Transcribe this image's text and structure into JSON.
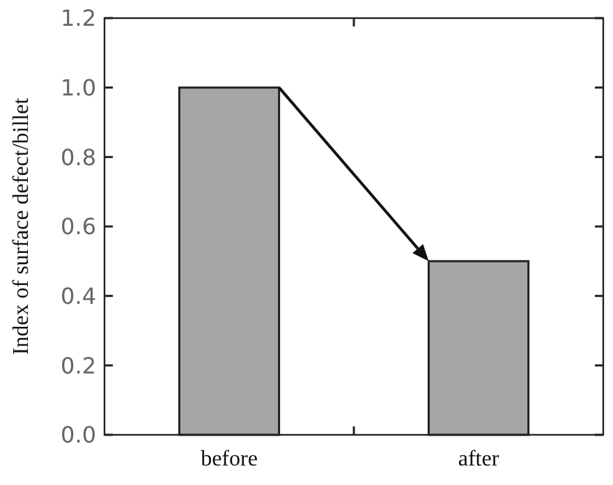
{
  "chart_data": {
    "type": "bar",
    "ylabel": "Index of surface defect/billet",
    "categories": [
      "before",
      "after"
    ],
    "values": [
      1.0,
      0.5
    ],
    "color": "#a6a6a6",
    "ylim": [
      0,
      1.2
    ],
    "yticks": [
      {
        "value": 0,
        "label": "0.0"
      },
      {
        "value": 0.2,
        "label": "0.2"
      },
      {
        "value": 0.4,
        "label": "0.4"
      },
      {
        "value": 0.6,
        "label": "0.6"
      },
      {
        "value": 0.8,
        "label": "0.8"
      },
      {
        "value": 1.0,
        "label": "1.0"
      },
      {
        "value": 1.2,
        "label": "1.2"
      }
    ],
    "grid": false
  }
}
